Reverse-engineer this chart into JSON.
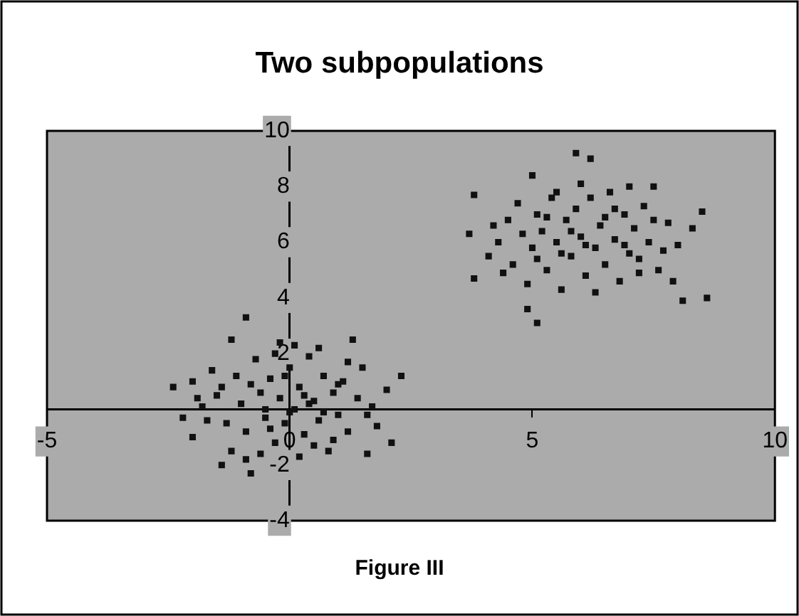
{
  "chart_data": {
    "type": "scatter",
    "title": "Two subpopulations",
    "annotations": [
      "Figure III"
    ],
    "x": [
      -2.4,
      -2.0,
      -0.9,
      -1.2,
      2.3,
      2.1,
      1.6,
      -2.0,
      -1.4,
      -0.8,
      1.3,
      -0.2,
      -1.5,
      -1.3,
      -1.1,
      -1.0,
      -0.9,
      -0.7,
      -0.6,
      -0.5,
      -0.4,
      -0.3,
      -0.2,
      -0.1,
      0.0,
      0.1,
      0.2,
      0.3,
      0.4,
      0.5,
      0.6,
      0.7,
      0.8,
      0.9,
      1.0,
      1.1,
      1.2,
      1.4,
      1.5,
      1.7,
      1.8,
      2.0,
      -1.8,
      -1.7,
      -1.6,
      -1.2,
      -0.8,
      -0.6,
      -0.3,
      0.0,
      0.2,
      0.4,
      0.6,
      0.9,
      1.2,
      -0.5,
      0.3,
      -0.1,
      0.7,
      -1.4,
      1.6,
      -2.2,
      -0.9,
      0.5,
      1.0,
      -0.4,
      0.1,
      -1.9,
      5.9,
      6.2,
      5.0,
      3.8,
      3.7,
      3.8,
      5.1,
      4.9,
      8.5,
      8.3,
      8.1,
      8.6,
      7.5,
      7.0,
      7.7,
      4.1,
      4.3,
      4.5,
      4.6,
      4.7,
      4.8,
      4.9,
      5.0,
      5.1,
      5.2,
      5.3,
      5.4,
      5.5,
      5.6,
      5.7,
      5.8,
      5.9,
      6.0,
      6.1,
      6.2,
      6.3,
      6.4,
      6.5,
      6.6,
      6.7,
      6.8,
      6.9,
      7.0,
      7.1,
      7.2,
      7.3,
      7.4,
      7.6,
      7.8,
      7.9,
      8.0,
      4.4,
      5.3,
      5.6,
      6.0,
      6.3,
      6.7,
      7.2,
      5.1,
      5.8,
      6.5,
      4.2,
      6.9,
      7.5,
      5.5,
      6.1
    ],
    "series": [
      {
        "color": "#111111",
        "values": [
          0.8,
          1.0,
          3.3,
          2.5,
          1.2,
          -1.2,
          -1.6,
          -1.0,
          -2.0,
          -2.3,
          2.5,
          2.4,
          0.5,
          -0.5,
          1.2,
          0.2,
          -0.8,
          1.8,
          0.6,
          -0.3,
          1.1,
          -1.2,
          0.4,
          -0.5,
          1.5,
          0.0,
          0.8,
          -0.9,
          1.9,
          0.3,
          -0.4,
          1.2,
          -1.5,
          0.6,
          -0.2,
          1.0,
          -0.8,
          0.4,
          1.5,
          0.1,
          -0.6,
          0.7,
          0.1,
          -0.4,
          1.4,
          -1.5,
          0.9,
          -1.6,
          2.0,
          -0.1,
          -1.7,
          0.2,
          2.2,
          -1.1,
          1.7,
          0.0,
          0.5,
          1.2,
          -0.1,
          0.8,
          -0.2,
          -0.3,
          -1.8,
          -1.3,
          0.9,
          -0.7,
          2.3,
          0.4,
          9.2,
          9.0,
          8.4,
          7.7,
          6.3,
          4.7,
          3.1,
          3.6,
          7.1,
          6.5,
          3.9,
          4.0,
          8.0,
          8.0,
          5.7,
          5.5,
          6.0,
          6.8,
          5.2,
          7.4,
          6.3,
          4.5,
          5.8,
          7.0,
          6.4,
          5.0,
          7.6,
          6.0,
          4.3,
          6.8,
          5.5,
          7.2,
          6.2,
          4.8,
          7.6,
          5.8,
          6.6,
          5.2,
          7.8,
          6.1,
          4.6,
          7.0,
          5.6,
          6.5,
          4.9,
          7.3,
          6.0,
          5.0,
          6.7,
          4.6,
          5.9,
          4.9,
          6.9,
          5.6,
          8.1,
          4.2,
          7.2,
          5.4,
          5.4,
          6.4,
          6.9,
          6.6,
          5.9,
          6.8,
          7.8,
          5.9
        ]
      }
    ],
    "xlim": [
      -5,
      10
    ],
    "xticks": [
      -5,
      0,
      5,
      10
    ],
    "ylim": [
      -4,
      10
    ],
    "yticks": [
      -4,
      -2,
      2,
      4,
      6,
      8,
      10
    ],
    "grid": false,
    "legend": false
  }
}
